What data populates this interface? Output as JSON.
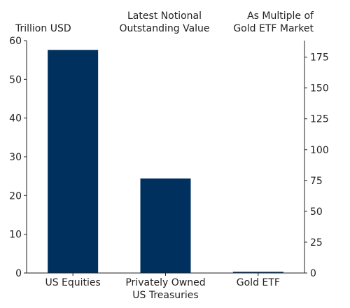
{
  "chart_data": {
    "type": "bar",
    "title_lines": [
      "Latest Notional",
      "Outstanding Value"
    ],
    "ylabel_left": "Trillion USD",
    "ylabel_right_lines": [
      "As Multiple of",
      "Gold ETF Market"
    ],
    "categories": [
      [
        "US Equities"
      ],
      [
        "Privately Owned",
        "US Treasuries"
      ],
      [
        "Gold ETF"
      ]
    ],
    "values": [
      57.6,
      24.4,
      0.31
    ],
    "ylim_left": [
      0,
      60
    ],
    "yticks_left": [
      0,
      10,
      20,
      30,
      40,
      50,
      60
    ],
    "ylim_right": [
      0,
      188.4
    ],
    "yticks_right": [
      0,
      25,
      50,
      75,
      100,
      125,
      150,
      175
    ],
    "bar_color": "#00305d",
    "grid": false
  }
}
